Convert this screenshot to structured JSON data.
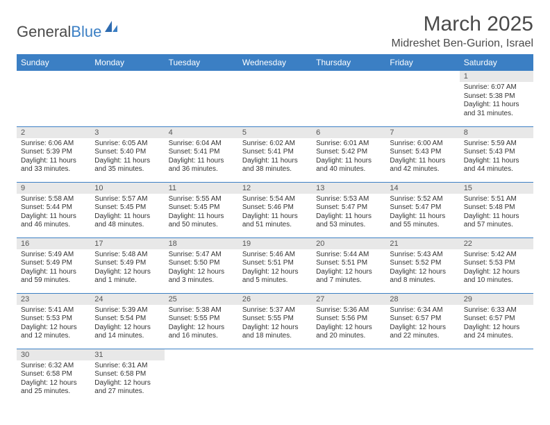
{
  "logo": {
    "text1": "General",
    "text2": "Blue"
  },
  "title": "March 2025",
  "location": "Midreshet Ben-Gurion, Israel",
  "weekdays": [
    "Sunday",
    "Monday",
    "Tuesday",
    "Wednesday",
    "Thursday",
    "Friday",
    "Saturday"
  ],
  "colors": {
    "header_bg": "#3b7fc4",
    "header_fg": "#ffffff",
    "daynum_bg": "#e8e8e8",
    "border": "#3b7fc4"
  },
  "weeks": [
    [
      null,
      null,
      null,
      null,
      null,
      null,
      {
        "n": "1",
        "sr": "6:07 AM",
        "ss": "5:38 PM",
        "dl": "11 hours and 31 minutes."
      }
    ],
    [
      {
        "n": "2",
        "sr": "6:06 AM",
        "ss": "5:39 PM",
        "dl": "11 hours and 33 minutes."
      },
      {
        "n": "3",
        "sr": "6:05 AM",
        "ss": "5:40 PM",
        "dl": "11 hours and 35 minutes."
      },
      {
        "n": "4",
        "sr": "6:04 AM",
        "ss": "5:41 PM",
        "dl": "11 hours and 36 minutes."
      },
      {
        "n": "5",
        "sr": "6:02 AM",
        "ss": "5:41 PM",
        "dl": "11 hours and 38 minutes."
      },
      {
        "n": "6",
        "sr": "6:01 AM",
        "ss": "5:42 PM",
        "dl": "11 hours and 40 minutes."
      },
      {
        "n": "7",
        "sr": "6:00 AM",
        "ss": "5:43 PM",
        "dl": "11 hours and 42 minutes."
      },
      {
        "n": "8",
        "sr": "5:59 AM",
        "ss": "5:43 PM",
        "dl": "11 hours and 44 minutes."
      }
    ],
    [
      {
        "n": "9",
        "sr": "5:58 AM",
        "ss": "5:44 PM",
        "dl": "11 hours and 46 minutes."
      },
      {
        "n": "10",
        "sr": "5:57 AM",
        "ss": "5:45 PM",
        "dl": "11 hours and 48 minutes."
      },
      {
        "n": "11",
        "sr": "5:55 AM",
        "ss": "5:45 PM",
        "dl": "11 hours and 50 minutes."
      },
      {
        "n": "12",
        "sr": "5:54 AM",
        "ss": "5:46 PM",
        "dl": "11 hours and 51 minutes."
      },
      {
        "n": "13",
        "sr": "5:53 AM",
        "ss": "5:47 PM",
        "dl": "11 hours and 53 minutes."
      },
      {
        "n": "14",
        "sr": "5:52 AM",
        "ss": "5:47 PM",
        "dl": "11 hours and 55 minutes."
      },
      {
        "n": "15",
        "sr": "5:51 AM",
        "ss": "5:48 PM",
        "dl": "11 hours and 57 minutes."
      }
    ],
    [
      {
        "n": "16",
        "sr": "5:49 AM",
        "ss": "5:49 PM",
        "dl": "11 hours and 59 minutes."
      },
      {
        "n": "17",
        "sr": "5:48 AM",
        "ss": "5:49 PM",
        "dl": "12 hours and 1 minute."
      },
      {
        "n": "18",
        "sr": "5:47 AM",
        "ss": "5:50 PM",
        "dl": "12 hours and 3 minutes."
      },
      {
        "n": "19",
        "sr": "5:46 AM",
        "ss": "5:51 PM",
        "dl": "12 hours and 5 minutes."
      },
      {
        "n": "20",
        "sr": "5:44 AM",
        "ss": "5:51 PM",
        "dl": "12 hours and 7 minutes."
      },
      {
        "n": "21",
        "sr": "5:43 AM",
        "ss": "5:52 PM",
        "dl": "12 hours and 8 minutes."
      },
      {
        "n": "22",
        "sr": "5:42 AM",
        "ss": "5:53 PM",
        "dl": "12 hours and 10 minutes."
      }
    ],
    [
      {
        "n": "23",
        "sr": "5:41 AM",
        "ss": "5:53 PM",
        "dl": "12 hours and 12 minutes."
      },
      {
        "n": "24",
        "sr": "5:39 AM",
        "ss": "5:54 PM",
        "dl": "12 hours and 14 minutes."
      },
      {
        "n": "25",
        "sr": "5:38 AM",
        "ss": "5:55 PM",
        "dl": "12 hours and 16 minutes."
      },
      {
        "n": "26",
        "sr": "5:37 AM",
        "ss": "5:55 PM",
        "dl": "12 hours and 18 minutes."
      },
      {
        "n": "27",
        "sr": "5:36 AM",
        "ss": "5:56 PM",
        "dl": "12 hours and 20 minutes."
      },
      {
        "n": "28",
        "sr": "6:34 AM",
        "ss": "6:57 PM",
        "dl": "12 hours and 22 minutes."
      },
      {
        "n": "29",
        "sr": "6:33 AM",
        "ss": "6:57 PM",
        "dl": "12 hours and 24 minutes."
      }
    ],
    [
      {
        "n": "30",
        "sr": "6:32 AM",
        "ss": "6:58 PM",
        "dl": "12 hours and 25 minutes."
      },
      {
        "n": "31",
        "sr": "6:31 AM",
        "ss": "6:58 PM",
        "dl": "12 hours and 27 minutes."
      },
      null,
      null,
      null,
      null,
      null
    ]
  ],
  "labels": {
    "sunrise": "Sunrise:",
    "sunset": "Sunset:",
    "daylight": "Daylight:"
  }
}
